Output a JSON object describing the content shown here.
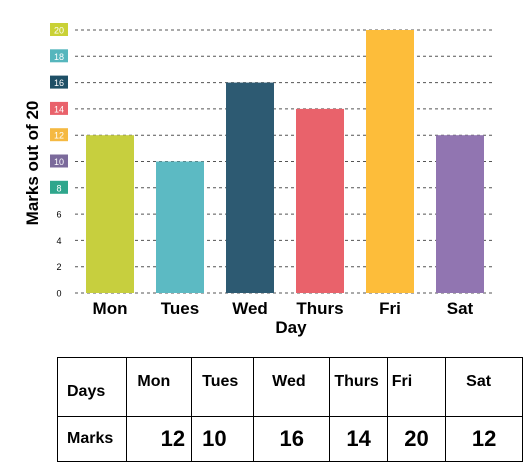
{
  "chart_data": {
    "type": "bar",
    "ylabel": "Marks out of 20",
    "xlabel": "Day",
    "categories": [
      "Mon",
      "Tues",
      "Wed",
      "Thurs",
      "Fri",
      "Sat"
    ],
    "values": [
      12,
      10,
      16,
      14,
      20,
      12
    ],
    "ylim": [
      0,
      20
    ],
    "yticks": [
      "0",
      "2",
      "4",
      "6",
      "8",
      "10",
      "12",
      "14",
      "16",
      "18",
      "20"
    ],
    "bar_colors": [
      "#c7cf3e",
      "#5cbac3",
      "#2d5a72",
      "#e9626b",
      "#fdbd3a",
      "#9175b1"
    ],
    "tick_colors": {
      "8": "#2fa68c",
      "10": "#7b6a9b",
      "12": "#f5b942",
      "14": "#e9626b",
      "16": "#1e4f66",
      "18": "#56b6bd",
      "20": "#c9d136"
    },
    "grid": "dashed horizontal"
  },
  "table": {
    "row1_header": "Days",
    "row2_header": "Marks",
    "days": [
      "Mon",
      "Tues",
      "Wed",
      "Thurs",
      "Fri",
      "Sat"
    ],
    "marks": [
      "12",
      "10",
      "16",
      "14",
      "20",
      "12"
    ]
  }
}
